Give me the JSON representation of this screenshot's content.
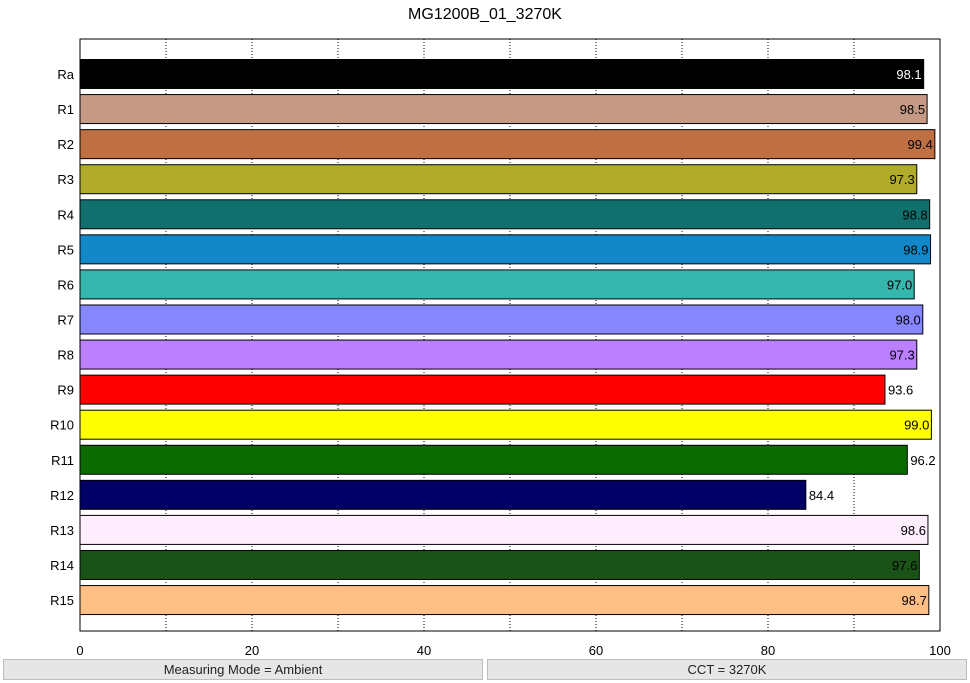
{
  "chart_data": {
    "type": "bar",
    "orientation": "horizontal",
    "title": "MG1200B_01_3270K",
    "categories": [
      "Ra",
      "R1",
      "R2",
      "R3",
      "R4",
      "R5",
      "R6",
      "R7",
      "R8",
      "R9",
      "R10",
      "R11",
      "R12",
      "R13",
      "R14",
      "R15"
    ],
    "values": [
      98.1,
      98.5,
      99.4,
      97.3,
      98.8,
      98.9,
      97.0,
      98.0,
      97.3,
      93.6,
      99.0,
      96.2,
      84.4,
      98.6,
      97.6,
      98.7
    ],
    "value_labels": [
      "98.1",
      "98.5",
      "99.4",
      "97.3",
      "98.8",
      "98.9",
      "97.0",
      "98.0",
      "97.3",
      "93.6",
      "99.0",
      "96.2",
      "84.4",
      "98.6",
      "97.6",
      "98.7"
    ],
    "colors": [
      "#000000",
      "#c49a84",
      "#bf7043",
      "#b0ab2b",
      "#116f6d",
      "#1288c8",
      "#36b7ae",
      "#8686ff",
      "#bb80ff",
      "#ff0000",
      "#ffff00",
      "#0b6b00",
      "#000066",
      "#ffeefd",
      "#1b5217",
      "#ffbf85"
    ],
    "label_colors": [
      "#ffffff",
      "#000000",
      "#000000",
      "#000000",
      "#000000",
      "#000000",
      "#000000",
      "#000000",
      "#000000",
      "#000000",
      "#000000",
      "#000000",
      "#000000",
      "#000000",
      "#000000",
      "#000000"
    ],
    "xlim": [
      0,
      100
    ],
    "x_ticks": [
      "0",
      "20",
      "40",
      "60",
      "80",
      "100"
    ],
    "grid": "vertical dotted at every 10"
  },
  "status": {
    "left": "Measuring Mode = Ambient",
    "right": "CCT = 3270K"
  }
}
